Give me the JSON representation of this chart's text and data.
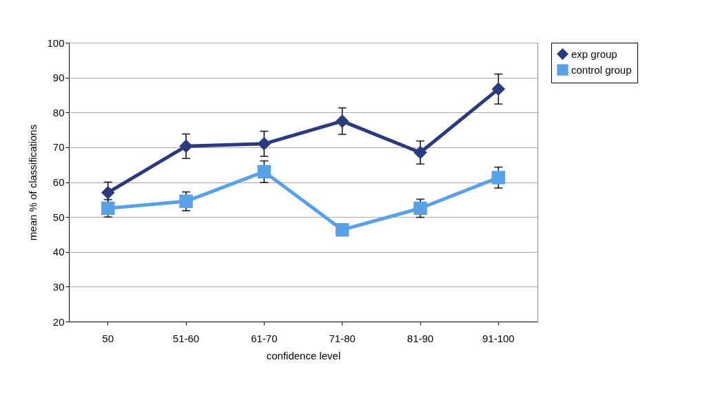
{
  "chart_data": {
    "type": "line",
    "xlabel": "confidence level",
    "ylabel": "mean % of classifications",
    "categories": [
      "50",
      "51-60",
      "61-70",
      "71-80",
      "81-90",
      "91-100"
    ],
    "series": [
      {
        "name": "exp group",
        "color": "#2b3a7e",
        "marker": "diamond",
        "values": [
          57,
          70.3,
          71,
          77.5,
          68.5,
          86.7
        ],
        "errors": [
          3,
          3.5,
          3.6,
          3.8,
          3.3,
          4.3
        ]
      },
      {
        "name": "control group",
        "color": "#5aa0e6",
        "marker": "square",
        "values": [
          52.5,
          54.5,
          63,
          46.3,
          52.5,
          61.3
        ],
        "errors": [
          2.5,
          2.7,
          3.1,
          null,
          2.6,
          3
        ]
      }
    ],
    "ylim": [
      20,
      100
    ],
    "yticks": [
      20,
      30,
      40,
      50,
      60,
      70,
      80,
      90,
      100
    ],
    "grid": "y",
    "legend": "right"
  }
}
